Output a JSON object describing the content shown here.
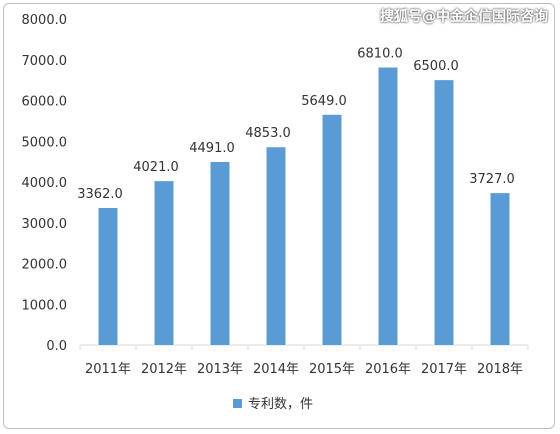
{
  "watermark": "搜狐号@中金企信国际咨询",
  "chart_data": {
    "type": "bar",
    "categories": [
      "2011年",
      "2012年",
      "2013年",
      "2014年",
      "2015年",
      "2016年",
      "2017年",
      "2018年"
    ],
    "series": [
      {
        "name": "专利数，件",
        "values": [
          3362.0,
          4021.0,
          4491.0,
          4853.0,
          5649.0,
          6810.0,
          6500.0,
          3727.0
        ],
        "color": "#5b9bd5"
      }
    ],
    "value_labels": [
      "3362.0",
      "4021.0",
      "4491.0",
      "4853.0",
      "5649.0",
      "6810.0",
      "6500.0",
      "3727.0"
    ],
    "y_ticks": [
      "0.0",
      "1000.0",
      "2000.0",
      "3000.0",
      "4000.0",
      "5000.0",
      "6000.0",
      "7000.0",
      "8000.0"
    ],
    "ylim": [
      0,
      8000
    ],
    "grid": false,
    "legend_position": "bottom",
    "title": "",
    "xlabel": "",
    "ylabel": ""
  }
}
